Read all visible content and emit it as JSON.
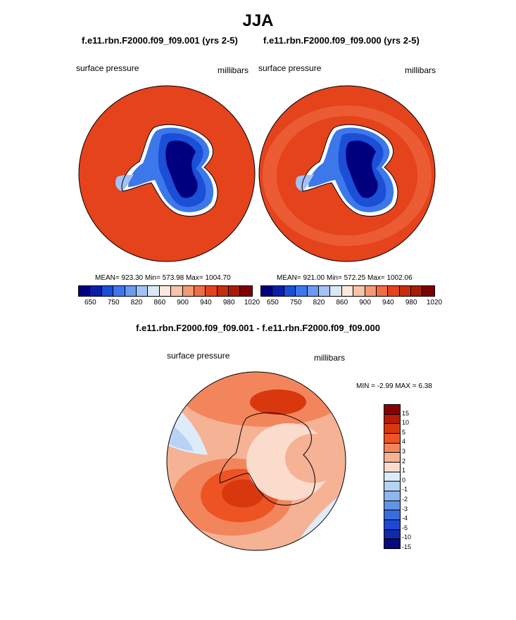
{
  "title": "JJA",
  "panels": [
    {
      "case": "f.e11.rbn.F2000.f09_f09.001 (yrs 2-5)",
      "variable": "surface pressure",
      "units": "millibars",
      "stats": "MEAN= 923.30  Min= 573.98  Max= 1004.70"
    },
    {
      "case": "f.e11.rbn.F2000.f09_f09.000 (yrs 2-5)",
      "variable": "surface pressure",
      "units": "millibars",
      "stats": "MEAN= 921.00  Min= 572.25  Max= 1002.06"
    }
  ],
  "colorbar": {
    "colors": [
      "#00007f",
      "#0a1fa5",
      "#1a4fd6",
      "#3c78ea",
      "#6c9af0",
      "#a3c2f5",
      "#dbe8f7",
      "#fde8de",
      "#f7c3a9",
      "#f39a72",
      "#ef6e45",
      "#e5431c",
      "#c72e0c",
      "#a61d06",
      "#7f0000"
    ],
    "tick_labels": [
      "650",
      "750",
      "820",
      "860",
      "900",
      "940",
      "980",
      "1020"
    ]
  },
  "difference": {
    "title": "f.e11.rbn.F2000.f09_f09.001 - f.e11.rbn.F2000.f09_f09.000",
    "variable": "surface pressure",
    "units": "millibars",
    "min_max": "MIN =  -2.99 MAX =   6.38",
    "colors": [
      "#8b0000",
      "#b81a05",
      "#d9380f",
      "#ee5324",
      "#f3855c",
      "#f6b295",
      "#fbdccc",
      "#deecfa",
      "#b7d2f4",
      "#8db6ee",
      "#6193e6",
      "#3a6ddc",
      "#1f48d2",
      "#1329a8",
      "#050a7c"
    ],
    "labels": [
      "15",
      "10",
      "5",
      "4",
      "3",
      "2",
      "1",
      "0",
      "-1",
      "-2",
      "-3",
      "-4",
      "-5",
      "-10",
      "-15"
    ]
  },
  "regions": {
    "continent": "Antarctica"
  }
}
